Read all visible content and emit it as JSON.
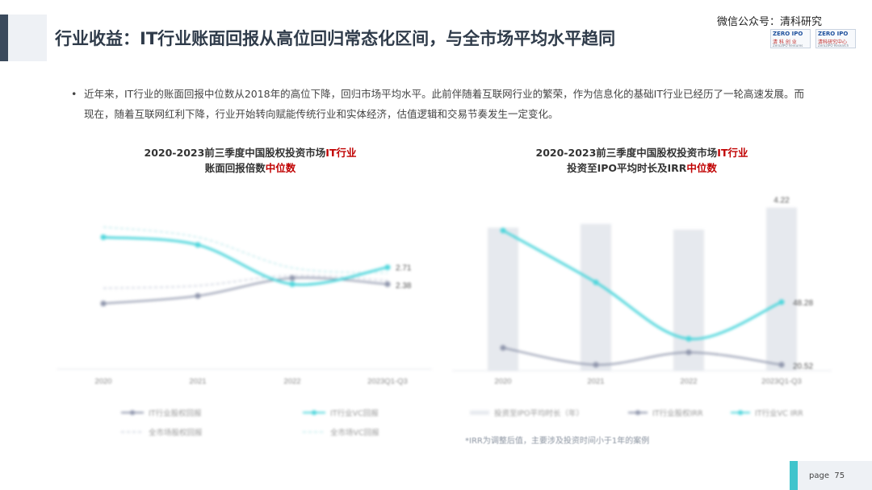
{
  "header": {
    "title": "行业收益：IT行业账面回报从高位回归常态化区间，与全市场平均水平趋同",
    "watermark": "微信公众号：清科研究",
    "logo_left": {
      "top": "ZERO IPO",
      "bottom": "清 科 创 业",
      "small": "Zero2IPO Ventures"
    },
    "logo_right": {
      "top": "ZERO IPO",
      "bottom": "清科研究中心",
      "small": "Zero2IPO Research"
    }
  },
  "bullet": {
    "marker": "•",
    "text": "近年来，IT行业的账面回报中位数从2018年的高位下降，回归市场平均水平。此前伴随着互联网行业的繁荣，作为信息化的基础IT行业已经历了一轮高速发展。而现在，随着互联网红利下降，行业开始转向赋能传统行业和实体经济，估值逻辑和交易节奏发生一定变化。"
  },
  "chart_left_title": {
    "line1_a": "2020-2023前三季度中国股权投资市场",
    "line1_hl": "IT行业",
    "line2_a": "账面回报倍数",
    "line2_hl": "中位数"
  },
  "chart_right_title": {
    "line1_a": "2020-2023前三季度中国股权投资市场",
    "line1_hl": "IT行业",
    "line2_a": "投资至IPO平均时长及IRR",
    "line2_hl": "中位数"
  },
  "footnote": "*IRR为调整后值，主要涉及投资时间小于1年的案例",
  "page": {
    "label": "page",
    "number": "75"
  },
  "colors": {
    "cyan": "#4fd6dc",
    "gray_line": "#8f96ac",
    "light_line": "#d6dae4",
    "pale_cyan": "#cdeff1",
    "bar": "#e6e9ee"
  },
  "chart_data": [
    {
      "type": "line",
      "categories": [
        "2020",
        "2021",
        "2022",
        "2023Q1-Q3"
      ],
      "ylim": [
        1,
        4
      ],
      "grid": false,
      "legend": "bottom",
      "series": [
        {
          "name": "IT行业股权回报",
          "values": [
            2.0,
            2.15,
            2.5,
            2.38
          ]
        },
        {
          "name": "IT行业VC回报",
          "values": [
            3.3,
            3.15,
            2.38,
            2.71
          ]
        },
        {
          "name": "全市场股权回报",
          "values": [
            2.3,
            2.35,
            2.55,
            2.45
          ]
        },
        {
          "name": "全市场VC回报",
          "values": [
            3.5,
            3.3,
            2.7,
            2.6
          ]
        }
      ],
      "data_labels": [
        "2.71",
        "2.38"
      ]
    },
    {
      "type": "bar",
      "categories": [
        "2020",
        "2021",
        "2022",
        "2023Q1-Q3"
      ],
      "legend": "bottom",
      "series": [
        {
          "name": "投资至IPO平均时长（年）",
          "values": [
            3.7,
            3.8,
            3.65,
            4.22
          ]
        },
        {
          "name": "IT行业股权IRR",
          "values": [
            28.0,
            20.5,
            26.0,
            20.5
          ]
        },
        {
          "name": "IT行业VC IRR",
          "values": [
            80.0,
            57.0,
            32.0,
            48.28
          ]
        }
      ],
      "bar_ylim": [
        0,
        4.5
      ],
      "irr_ylim": [
        0,
        100
      ],
      "data_labels": [
        "4.22",
        "48.28",
        "20.52"
      ]
    }
  ]
}
